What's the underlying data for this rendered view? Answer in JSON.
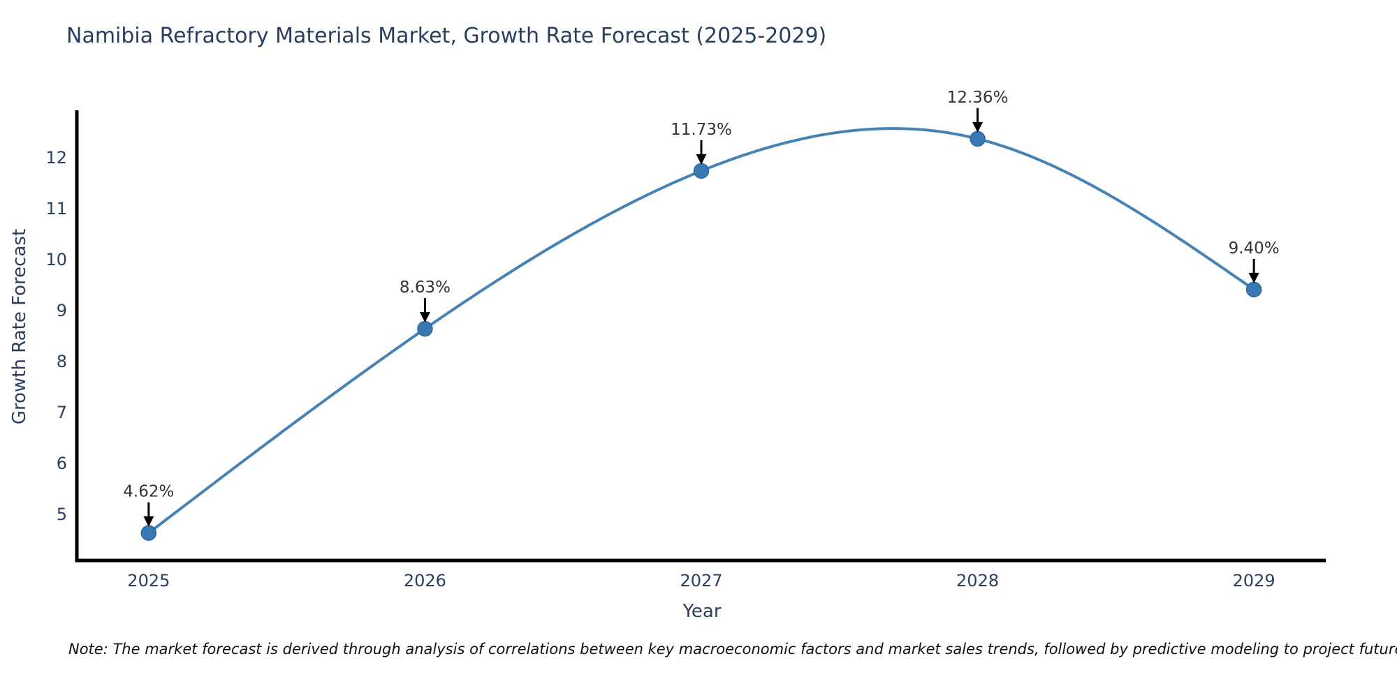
{
  "chart_data": {
    "type": "line",
    "title": "Namibia Refractory Materials Market, Growth Rate Forecast (2025-2029)",
    "xlabel": "Year",
    "ylabel": "Growth Rate Forecast",
    "x": [
      2025,
      2026,
      2027,
      2028,
      2029
    ],
    "values": [
      4.62,
      8.63,
      11.73,
      12.36,
      9.4
    ],
    "point_labels": [
      "4.62%",
      "8.63%",
      "11.73%",
      "12.36%",
      "9.40%"
    ],
    "x_ticks": [
      "2025",
      "2026",
      "2027",
      "2028",
      "2029"
    ],
    "y_ticks": [
      5,
      6,
      7,
      8,
      9,
      10,
      11,
      12
    ],
    "xlim": [
      2024.74,
      2029.26
    ],
    "ylim": [
      4.08,
      12.92
    ],
    "line_shape": "spline",
    "grid": false,
    "legend": "none",
    "line_color": "#4682b4",
    "marker_color": "#3a78b4",
    "marker_edge_color": "#2e679e",
    "axis_color": "#000000",
    "text_color": "#2a3f5f",
    "annotation_text_color": "#333333",
    "annotation_arrow_color": "#000000",
    "note": "Note: The market forecast is derived through analysis of correlations between key macroeconomic factors and market sales trends, followed by predictive modeling to project future sales."
  }
}
